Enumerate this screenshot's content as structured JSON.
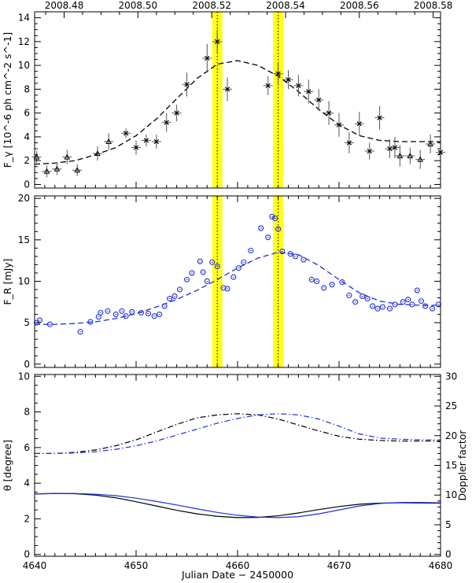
{
  "chart_data": [
    {
      "panel": "gamma-ray flux",
      "type": "scatter",
      "title": "",
      "top_axis": {
        "label": "",
        "range": [
          2008.472,
          2008.582
        ],
        "ticks": [
          2008.48,
          2008.5,
          2008.52,
          2008.54,
          2008.56,
          2008.58
        ]
      },
      "ylabel": "F_γ [10^-6 ph cm^-2 s^-1]",
      "ylim": [
        -0.3,
        14.5
      ],
      "yticks": [
        0,
        2,
        4,
        6,
        8,
        10,
        12,
        14
      ],
      "series": [
        {
          "name": "triangles",
          "marker": "triangle",
          "x": [
            4640.2,
            4641.2,
            4642.2,
            4643.2,
            4644.2,
            4646.2,
            4647.3
          ],
          "y": [
            2.3,
            1.1,
            1.3,
            2.3,
            1.2,
            2.6,
            3.6
          ],
          "err": [
            0.5,
            0.5,
            0.5,
            0.6,
            0.5,
            0.6,
            0.7
          ]
        },
        {
          "name": "crosses",
          "marker": "x",
          "x": [
            4649.0,
            4650.0,
            4651.0,
            4652.0,
            4653.0,
            4654.0,
            4655.0,
            4657.0,
            4658.0,
            4659.0,
            4663.0,
            4664.0,
            4665.0,
            4666.0,
            4667.0,
            4668.0,
            4669.0,
            4670.0,
            4671.0,
            4672.0,
            4673.0,
            4674.0,
            4675.0,
            4675.5,
            4680.0
          ],
          "y": [
            4.3,
            3.1,
            3.7,
            3.6,
            5.2,
            6.0,
            8.4,
            10.6,
            12.0,
            8.0,
            8.3,
            9.3,
            8.8,
            8.3,
            7.8,
            7.1,
            6.0,
            5.0,
            3.5,
            5.1,
            2.8,
            5.6,
            3.0,
            3.1,
            2.7
          ],
          "err": [
            0.4,
            0.6,
            0.5,
            0.6,
            0.8,
            0.7,
            1.0,
            1.2,
            1.0,
            1.0,
            0.8,
            1.0,
            0.8,
            0.9,
            1.0,
            0.9,
            1.0,
            1.0,
            0.9,
            1.0,
            0.7,
            1.0,
            0.8,
            0.9,
            0.9
          ]
        },
        {
          "name": "triangles-late",
          "marker": "triangle",
          "x": [
            4676.0,
            4677.0,
            4678.0,
            4679.0
          ],
          "y": [
            2.4,
            2.4,
            2.1,
            3.4
          ],
          "err": [
            0.9,
            0.7,
            0.8,
            0.8
          ]
        }
      ],
      "model_curve": {
        "name": "model",
        "style": "dashed",
        "x": [
          4640,
          4642,
          4644,
          4646,
          4648,
          4650,
          4652,
          4654,
          4656,
          4658,
          4660,
          4662,
          4664,
          4666,
          4668,
          4670,
          4672,
          4674,
          4676,
          4678,
          4680
        ],
        "y": [
          1.7,
          1.8,
          2.0,
          2.5,
          3.1,
          4.1,
          5.5,
          7.2,
          8.9,
          10.1,
          10.4,
          10.0,
          9.1,
          7.8,
          6.3,
          5.0,
          4.1,
          3.7,
          3.6,
          3.6,
          3.6
        ]
      },
      "highlight_bands": [
        {
          "center": 4658.0,
          "halfwidth": 0.5
        },
        {
          "center": 4664.0,
          "halfwidth": 0.5
        }
      ]
    },
    {
      "panel": "optical R-band flux",
      "type": "scatter",
      "title": "",
      "ylabel": "F_R [mJy]",
      "ylim": [
        -0.4,
        20.3
      ],
      "yticks": [
        0,
        5,
        10,
        15,
        20
      ],
      "series": [
        {
          "name": "R-band",
          "marker": "circle-open",
          "color": "#1f2fd8",
          "x": [
            4640.2,
            4640.5,
            4641.5,
            4644.5,
            4645.5,
            4646.3,
            4646.5,
            4647.2,
            4648.0,
            4648.6,
            4649.0,
            4649.6,
            4650.5,
            4651.2,
            4651.8,
            4652.3,
            4652.8,
            4653.3,
            4653.8,
            4654.3,
            4655.0,
            4655.5,
            4656.3,
            4656.6,
            4657.0,
            4657.5,
            4658.0,
            4658.6,
            4659.0,
            4659.6,
            4660.1,
            4660.6,
            4661.3,
            4662.3,
            4663.0,
            4663.4,
            4663.7,
            4664.0,
            4664.4,
            4665.2,
            4665.7,
            4666.5,
            4667.3,
            4667.8,
            4668.5,
            4669.3,
            4670.3,
            4671.0,
            4671.6,
            4672.3,
            4672.8,
            4673.3,
            4673.8,
            4674.3,
            4675.0,
            4675.5,
            4676.3,
            4676.8,
            4677.2,
            4677.7,
            4678.1,
            4678.5,
            4679.2,
            4679.8
          ],
          "y": [
            5.0,
            5.3,
            4.8,
            3.9,
            5.1,
            5.7,
            6.2,
            6.4,
            6.0,
            6.4,
            5.8,
            6.3,
            6.2,
            6.1,
            5.8,
            6.0,
            7.0,
            7.9,
            8.2,
            9.0,
            10.2,
            11.0,
            12.4,
            11.1,
            10.0,
            12.3,
            11.8,
            9.2,
            9.1,
            10.5,
            11.6,
            12.3,
            13.7,
            16.4,
            15.3,
            17.8,
            17.6,
            16.3,
            13.6,
            13.3,
            13.0,
            12.6,
            10.2,
            10.0,
            9.2,
            9.6,
            9.9,
            8.3,
            7.5,
            8.2,
            7.9,
            7.0,
            6.7,
            6.9,
            6.7,
            7.2,
            7.5,
            7.8,
            7.2,
            8.9,
            7.6,
            7.0,
            6.7,
            7.2
          ]
        }
      ],
      "model_curve": {
        "name": "model",
        "style": "dashed",
        "color": "#1f2fd8",
        "x": [
          4640,
          4642,
          4644,
          4646,
          4648,
          4650,
          4652,
          4654,
          4656,
          4658,
          4660,
          4662,
          4664,
          4666,
          4668,
          4670,
          4672,
          4674,
          4676,
          4678,
          4680
        ],
        "y": [
          4.8,
          4.8,
          4.9,
          5.1,
          5.5,
          6.1,
          6.9,
          7.8,
          8.9,
          10.2,
          11.6,
          12.8,
          13.5,
          13.2,
          11.9,
          10.2,
          8.6,
          7.6,
          7.2,
          7.1,
          7.1
        ]
      },
      "highlight_bands": [
        {
          "center": 4658.0,
          "halfwidth": 0.5
        },
        {
          "center": 4664.0,
          "halfwidth": 0.5
        }
      ]
    },
    {
      "panel": "viewing angle and Doppler factor",
      "type": "line",
      "title": "",
      "xlabel": "Julian Date − 2450000",
      "xlim": [
        4640,
        4680
      ],
      "xticks": [
        4640,
        4650,
        4660,
        4670,
        4680
      ],
      "ylabel": "θ [degree]",
      "ylim": [
        -0.1,
        10.1
      ],
      "yticks": [
        0,
        2,
        4,
        6,
        8,
        10
      ],
      "y2label": "Doppler factor",
      "y2lim": [
        -0.3,
        30.3
      ],
      "y2ticks": [
        0,
        5,
        10,
        15,
        20,
        25,
        30
      ],
      "series": [
        {
          "name": "doppler-black",
          "axis": "right",
          "style": "dash-dot",
          "color": "#000000",
          "x": [
            4640,
            4642,
            4644,
            4646,
            4648,
            4650,
            4652,
            4654,
            4656,
            4658,
            4660,
            4662,
            4664,
            4666,
            4668,
            4670,
            4672,
            4674,
            4676,
            4678,
            4680
          ],
          "y": [
            17.0,
            17.0,
            17.2,
            17.6,
            18.3,
            19.3,
            20.6,
            21.9,
            23.0,
            23.5,
            23.7,
            23.5,
            22.8,
            21.8,
            20.8,
            19.9,
            19.4,
            19.2,
            19.1,
            19.1,
            19.1
          ]
        },
        {
          "name": "doppler-blue",
          "axis": "right",
          "style": "dash-dot",
          "color": "#1f2fd8",
          "x": [
            4640,
            4642,
            4644,
            4646,
            4648,
            4650,
            4652,
            4654,
            4656,
            4658,
            4660,
            4662,
            4664,
            4666,
            4668,
            4670,
            4672,
            4674,
            4676,
            4678,
            4680
          ],
          "y": [
            17.0,
            17.0,
            17.1,
            17.3,
            17.7,
            18.3,
            19.1,
            20.1,
            21.1,
            22.1,
            22.9,
            23.5,
            23.7,
            23.5,
            22.8,
            21.6,
            20.3,
            19.6,
            19.4,
            19.3,
            19.3
          ]
        },
        {
          "name": "theta-black",
          "axis": "left",
          "style": "solid",
          "color": "#000000",
          "x": [
            4640,
            4642,
            4644,
            4646,
            4648,
            4650,
            4652,
            4654,
            4656,
            4658,
            4660,
            4662,
            4664,
            4666,
            4668,
            4670,
            4672,
            4674,
            4676,
            4678,
            4680
          ],
          "y": [
            3.4,
            3.42,
            3.41,
            3.33,
            3.18,
            2.96,
            2.72,
            2.48,
            2.28,
            2.14,
            2.07,
            2.08,
            2.17,
            2.33,
            2.52,
            2.69,
            2.82,
            2.88,
            2.9,
            2.89,
            2.88
          ]
        },
        {
          "name": "theta-blue",
          "axis": "left",
          "style": "solid",
          "color": "#1f2fd8",
          "x": [
            4640,
            4642,
            4644,
            4646,
            4648,
            4650,
            4652,
            4654,
            4656,
            4658,
            4660,
            4662,
            4664,
            4666,
            4668,
            4670,
            4672,
            4674,
            4676,
            4678,
            4680
          ],
          "y": [
            3.4,
            3.42,
            3.42,
            3.38,
            3.3,
            3.16,
            2.98,
            2.78,
            2.56,
            2.36,
            2.2,
            2.1,
            2.07,
            2.12,
            2.28,
            2.5,
            2.72,
            2.86,
            2.92,
            2.92,
            2.9
          ]
        }
      ]
    }
  ]
}
